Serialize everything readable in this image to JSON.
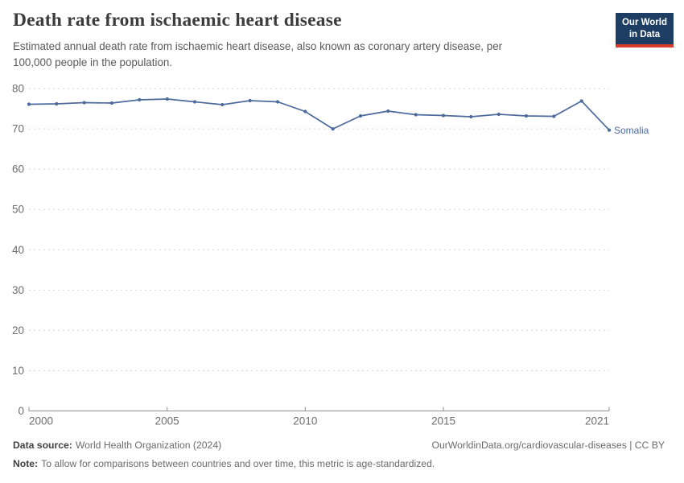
{
  "header": {
    "title": "Death rate from ischaemic heart disease",
    "subtitle_line1": "Estimated annual death rate from ischaemic heart disease, also known as coronary artery disease, per",
    "subtitle_line2": "100,000 people in the population."
  },
  "logo": {
    "line1": "Our World",
    "line2": "in Data",
    "bg_color": "#1d3d63",
    "accent_color": "#d93b2a"
  },
  "chart_data": {
    "type": "line",
    "title": "Death rate from ischaemic heart disease",
    "xlabel": "",
    "ylabel": "",
    "x": [
      2000,
      2001,
      2002,
      2003,
      2004,
      2005,
      2006,
      2007,
      2008,
      2009,
      2010,
      2011,
      2012,
      2013,
      2014,
      2015,
      2016,
      2017,
      2018,
      2019,
      2020,
      2021
    ],
    "series": [
      {
        "name": "Somalia",
        "color": "#4C6A9C",
        "values": [
          76.1,
          76.2,
          76.5,
          76.4,
          77.2,
          77.4,
          76.7,
          76.0,
          77.0,
          76.7,
          74.3,
          70.0,
          73.2,
          74.4,
          73.5,
          73.3,
          73.0,
          73.6,
          73.2,
          73.1,
          76.9,
          69.7
        ]
      }
    ],
    "ylim": [
      0,
      80
    ],
    "yticks": [
      0,
      10,
      20,
      30,
      40,
      50,
      60,
      70,
      80
    ],
    "xticks": [
      2000,
      2005,
      2010,
      2015,
      2021
    ],
    "grid": "horizontal-dashed",
    "legend_position": "line-end-label"
  },
  "colors": {
    "line": "#4C6A9C",
    "grid": "#d7d7d7",
    "axis": "#8f8f8f",
    "tick_text": "#6e6e6e"
  },
  "footer": {
    "data_source_label": "Data source:",
    "data_source_value": "World Health Organization (2024)",
    "citation": "OurWorldinData.org/cardiovascular-diseases | CC BY",
    "note_label": "Note:",
    "note_value": "To allow for comparisons between countries and over time, this metric is age-standardized."
  }
}
